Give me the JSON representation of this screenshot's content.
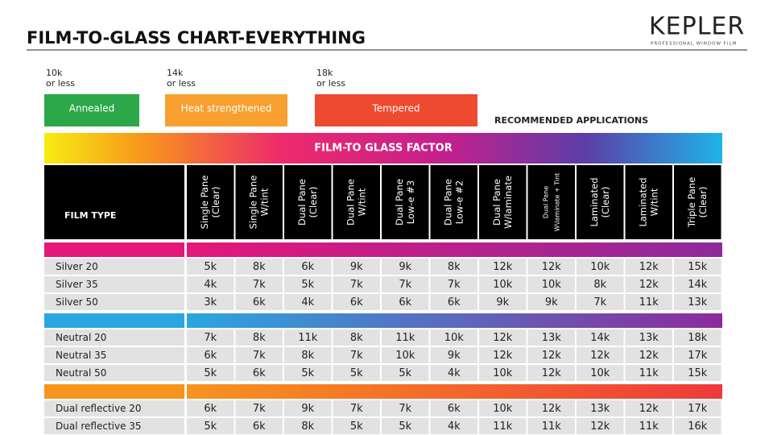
{
  "header": {
    "title": "FILM-TO-GLASS CHART-EVERYTHING",
    "logo": "KEPLER",
    "logo_tagline": "PROFESSIONAL WINDOW FILM"
  },
  "legend": [
    {
      "threshold": [
        "10k",
        "or less"
      ],
      "label": "Annealed"
    },
    {
      "threshold": [
        "14k",
        "or less"
      ],
      "label": "Heat strengthened"
    },
    {
      "threshold": [
        "18k",
        "or less"
      ],
      "label": "Tempered"
    }
  ],
  "recommended": "RECOMMENDED APPLICATIONS",
  "band": "FILM-TO GLASS FACTOR",
  "table": {
    "first_header": "FILM TYPE",
    "columns": [
      {
        "lines": [
          "Single Pane",
          "(Clear)"
        ]
      },
      {
        "lines": [
          "Single Pane",
          "W/tint"
        ]
      },
      {
        "lines": [
          "Dual Pane",
          "(Clear)"
        ]
      },
      {
        "lines": [
          "Dual Pane",
          "W/tint"
        ]
      },
      {
        "lines": [
          "Dual Pane",
          "Low-e #3"
        ]
      },
      {
        "lines": [
          "Dual Pane",
          "Low-e #2"
        ]
      },
      {
        "lines": [
          "Dual Pane",
          "W/laminate"
        ]
      },
      {
        "lines": [
          "Dual Pane",
          "W\\laminate + Tint"
        ]
      },
      {
        "lines": [
          "Laminated",
          "(Clear)"
        ]
      },
      {
        "lines": [
          "Laminated",
          "W/tint"
        ]
      },
      {
        "lines": [
          "Triple Pane",
          "(Clear)"
        ]
      }
    ],
    "groups": [
      {
        "rows": [
          [
            "Silver 20",
            "5k",
            "8k",
            "6k",
            "9k",
            "9k",
            "8k",
            "12k",
            "12k",
            "10k",
            "12k",
            "15k"
          ],
          [
            "Silver 35",
            "4k",
            "7k",
            "5k",
            "7k",
            "7k",
            "7k",
            "10k",
            "10k",
            "8k",
            "12k",
            "14k"
          ],
          [
            "Silver 50",
            "3k",
            "6k",
            "4k",
            "6k",
            "6k",
            "6k",
            "9k",
            "9k",
            "7k",
            "11k",
            "13k"
          ]
        ]
      },
      {
        "rows": [
          [
            "Neutral 20",
            "7k",
            "8k",
            "11k",
            "8k",
            "11k",
            "10k",
            "12k",
            "13k",
            "14k",
            "13k",
            "18k"
          ],
          [
            "Neutral 35",
            "6k",
            "7k",
            "8k",
            "7k",
            "10k",
            "9k",
            "12k",
            "12k",
            "12k",
            "12k",
            "17k"
          ],
          [
            "Neutral 50",
            "5k",
            "6k",
            "5k",
            "5k",
            "5k",
            "4k",
            "10k",
            "12k",
            "10k",
            "11k",
            "15k"
          ]
        ]
      },
      {
        "rows": [
          [
            "Dual reflective 20",
            "6k",
            "7k",
            "9k",
            "7k",
            "7k",
            "6k",
            "10k",
            "12k",
            "13k",
            "12k",
            "17k"
          ],
          [
            "Dual reflective 35",
            "5k",
            "6k",
            "8k",
            "5k",
            "5k",
            "4k",
            "11k",
            "11k",
            "12k",
            "11k",
            "16k"
          ]
        ]
      }
    ]
  }
}
